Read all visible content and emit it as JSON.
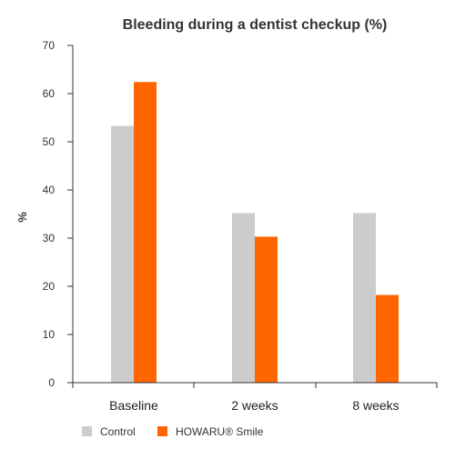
{
  "chart_data": {
    "type": "bar",
    "title": "Bleeding during a dentist checkup (%)",
    "xlabel": "",
    "ylabel": "%",
    "categories": [
      "Baseline",
      "2 weeks",
      "8 weeks"
    ],
    "series": [
      {
        "name": "Control",
        "values": [
          53.3,
          35.2,
          35.2
        ],
        "color": "#cccccc"
      },
      {
        "name": "HOWARU® Smile",
        "values": [
          62.4,
          30.3,
          18.2
        ],
        "color": "#ff6600"
      }
    ],
    "ylim": [
      0,
      70
    ],
    "yticks": [
      0,
      10,
      20,
      30,
      40,
      50,
      60,
      70
    ],
    "grid": false,
    "legend_position": "bottom-left"
  }
}
